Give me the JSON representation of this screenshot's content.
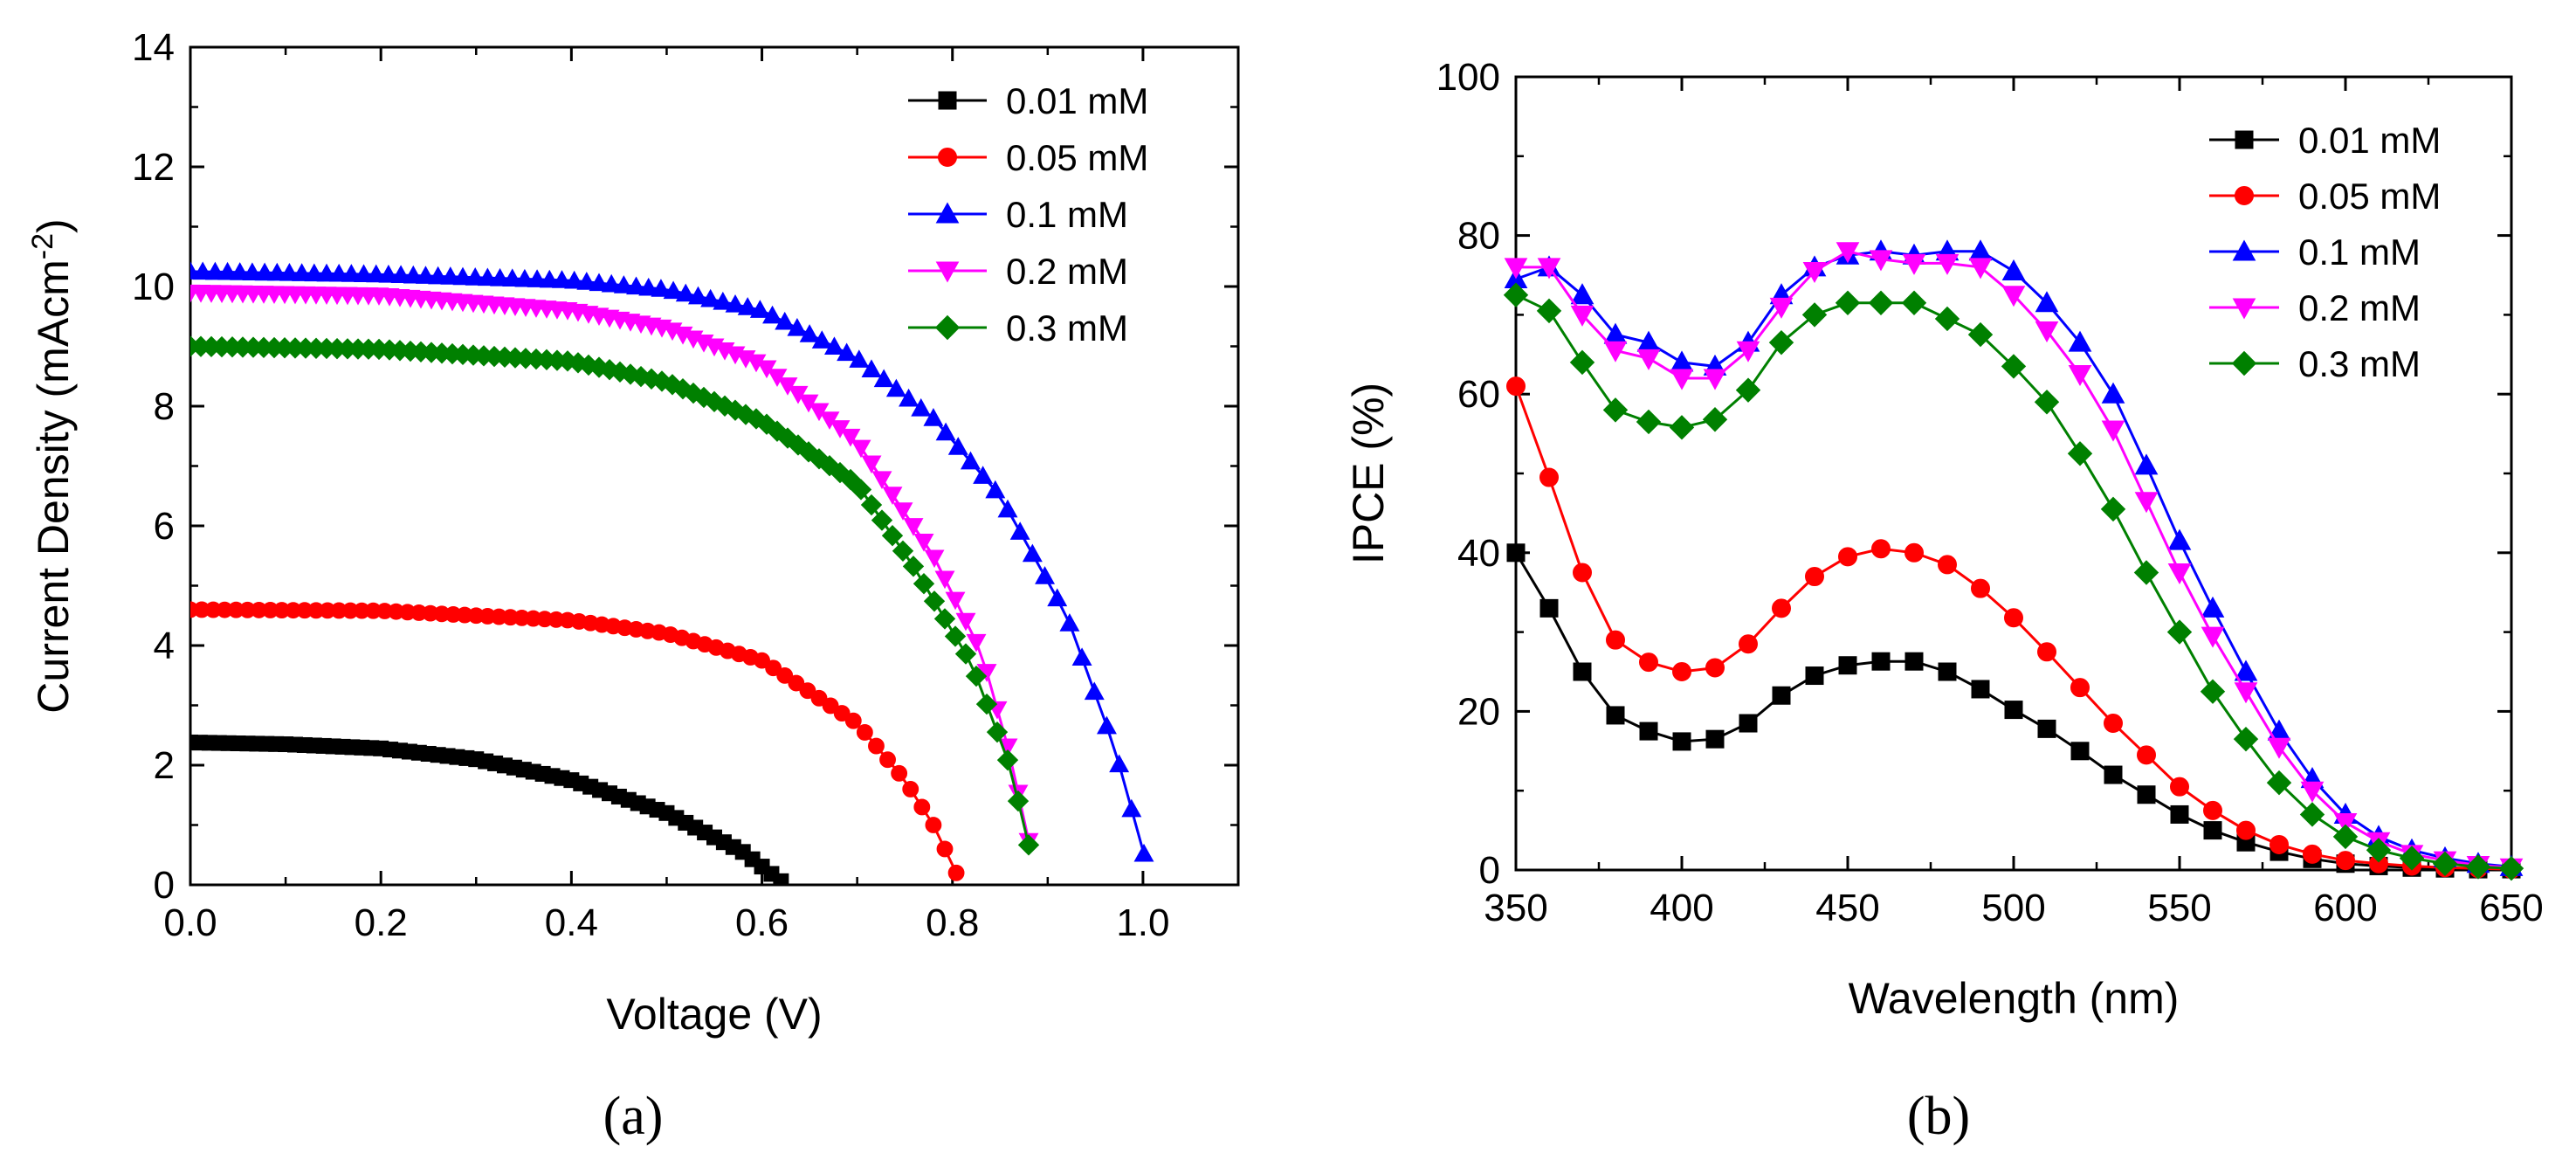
{
  "chart_data": [
    {
      "type": "line",
      "panel_label": "(a)",
      "xlabel": "Voltage (V)",
      "ylabel": "Current Density (mAcm",
      "ylabel_superscript": "-2",
      "ylabel_suffix": ")",
      "xlim": [
        0.0,
        1.1
      ],
      "ylim": [
        0,
        14
      ],
      "xticks": [
        "0.0",
        "0.2",
        "0.4",
        "0.6",
        "0.8",
        "1.0"
      ],
      "yticks": [
        "0",
        "2",
        "4",
        "6",
        "8",
        "10",
        "12",
        "14"
      ],
      "legend_position": "top-right",
      "series": [
        {
          "name": "0.01 mM",
          "color": "#000000",
          "marker": "square",
          "jsc": 2.38,
          "voc": 0.625,
          "v_dense": 0.01,
          "curve": [
            [
              0.0,
              2.38
            ],
            [
              0.1,
              2.35
            ],
            [
              0.2,
              2.28
            ],
            [
              0.3,
              2.1
            ],
            [
              0.4,
              1.75
            ],
            [
              0.5,
              1.2
            ],
            [
              0.58,
              0.55
            ],
            [
              0.625,
              0.0
            ]
          ]
        },
        {
          "name": "0.05 mM",
          "color": "#ff0000",
          "marker": "circle",
          "jsc": 4.6,
          "voc": 0.81,
          "v_dense": 0.012,
          "curve": [
            [
              0.0,
              4.6
            ],
            [
              0.2,
              4.58
            ],
            [
              0.4,
              4.42
            ],
            [
              0.5,
              4.2
            ],
            [
              0.6,
              3.75
            ],
            [
              0.7,
              2.7
            ],
            [
              0.75,
              1.75
            ],
            [
              0.78,
              1.0
            ],
            [
              0.81,
              0.0
            ]
          ]
        },
        {
          "name": "0.1 mM",
          "color": "#0000ff",
          "marker": "triangle-up",
          "jsc": 10.25,
          "voc": 1.01,
          "v_dense": 0.013,
          "curve": [
            [
              0.0,
              10.25
            ],
            [
              0.2,
              10.2
            ],
            [
              0.4,
              10.1
            ],
            [
              0.5,
              9.95
            ],
            [
              0.6,
              9.6
            ],
            [
              0.7,
              8.8
            ],
            [
              0.78,
              7.8
            ],
            [
              0.85,
              6.5
            ],
            [
              0.92,
              4.5
            ],
            [
              0.97,
              2.3
            ],
            [
              1.01,
              0.0
            ]
          ]
        },
        {
          "name": "0.2 mM",
          "color": "#ff00ff",
          "marker": "triangle-down",
          "jsc": 9.9,
          "voc": 0.89,
          "v_dense": 0.011,
          "curve": [
            [
              0.0,
              9.9
            ],
            [
              0.2,
              9.85
            ],
            [
              0.4,
              9.6
            ],
            [
              0.5,
              9.3
            ],
            [
              0.6,
              8.7
            ],
            [
              0.7,
              7.4
            ],
            [
              0.78,
              5.5
            ],
            [
              0.83,
              3.9
            ],
            [
              0.86,
              2.2
            ],
            [
              0.89,
              0.0
            ]
          ]
        },
        {
          "name": "0.3 mM",
          "color": "#008000",
          "marker": "diamond",
          "jsc": 9.0,
          "voc": 0.89,
          "v_dense": 0.011,
          "curve": [
            [
              0.0,
              9.0
            ],
            [
              0.2,
              8.95
            ],
            [
              0.4,
              8.75
            ],
            [
              0.5,
              8.4
            ],
            [
              0.6,
              7.75
            ],
            [
              0.7,
              6.7
            ],
            [
              0.76,
              5.3
            ],
            [
              0.82,
              3.7
            ],
            [
              0.86,
              2.0
            ],
            [
              0.89,
              0.0
            ]
          ]
        }
      ]
    },
    {
      "type": "line",
      "panel_label": "(b)",
      "xlabel": "Wavelength (nm)",
      "ylabel": "IPCE (%)",
      "xlim": [
        350,
        650
      ],
      "ylim": [
        0,
        100
      ],
      "xticks": [
        "350",
        "400",
        "450",
        "500",
        "550",
        "600",
        "650"
      ],
      "yticks": [
        "0",
        "20",
        "40",
        "60",
        "80",
        "100"
      ],
      "legend_position": "top-right",
      "x": [
        350,
        360,
        370,
        380,
        390,
        400,
        410,
        420,
        430,
        440,
        450,
        460,
        470,
        480,
        490,
        500,
        510,
        520,
        530,
        540,
        550,
        560,
        570,
        580,
        590,
        600,
        610,
        620,
        630,
        640,
        650
      ],
      "series": [
        {
          "name": "0.01 mM",
          "color": "#000000",
          "marker": "square",
          "values": [
            40,
            33,
            25,
            19.5,
            17.5,
            16.2,
            16.5,
            18.5,
            22,
            24.5,
            25.8,
            26.3,
            26.3,
            25,
            22.8,
            20.2,
            17.8,
            15,
            12,
            9.5,
            7,
            5,
            3.5,
            2.3,
            1.4,
            0.8,
            0.5,
            0.3,
            0.2,
            0.1,
            0.1
          ]
        },
        {
          "name": "0.05 mM",
          "color": "#ff0000",
          "marker": "circle",
          "values": [
            61,
            49.5,
            37.5,
            29,
            26.2,
            25,
            25.5,
            28.5,
            33,
            37,
            39.5,
            40.5,
            40,
            38.5,
            35.5,
            31.8,
            27.5,
            23,
            18.5,
            14.5,
            10.5,
            7.5,
            5,
            3.2,
            2,
            1.2,
            0.8,
            0.5,
            0.3,
            0.2,
            0.1
          ]
        },
        {
          "name": "0.1 mM",
          "color": "#0000ff",
          "marker": "triangle-up",
          "values": [
            74.5,
            76,
            72.5,
            67.5,
            66.5,
            64,
            63.5,
            66.5,
            72.5,
            76,
            77.5,
            78,
            77.5,
            78,
            78,
            75.5,
            71.5,
            66.5,
            60,
            51,
            41.5,
            33,
            25,
            17.5,
            11.5,
            7,
            4.2,
            2.5,
            1.5,
            0.8,
            0.4
          ]
        },
        {
          "name": "0.2 mM",
          "color": "#ff00ff",
          "marker": "triangle-down",
          "values": [
            76,
            76,
            70,
            65.5,
            64.5,
            62,
            62,
            65.5,
            71,
            75.5,
            78,
            77,
            76.5,
            76.5,
            76,
            72.5,
            68,
            62.5,
            55.5,
            46.5,
            37.5,
            29.5,
            22.5,
            15.5,
            10,
            6,
            3.6,
            2,
            1.2,
            0.6,
            0.3
          ]
        },
        {
          "name": "0.3 mM",
          "color": "#008000",
          "marker": "diamond",
          "values": [
            72.5,
            70.5,
            64,
            58,
            56.5,
            55.8,
            56.8,
            60.5,
            66.5,
            70,
            71.5,
            71.5,
            71.5,
            69.5,
            67.5,
            63.5,
            59,
            52.5,
            45.5,
            37.5,
            30,
            22.5,
            16.5,
            11,
            7,
            4.2,
            2.5,
            1.5,
            0.8,
            0.4,
            0.2
          ]
        }
      ]
    }
  ]
}
